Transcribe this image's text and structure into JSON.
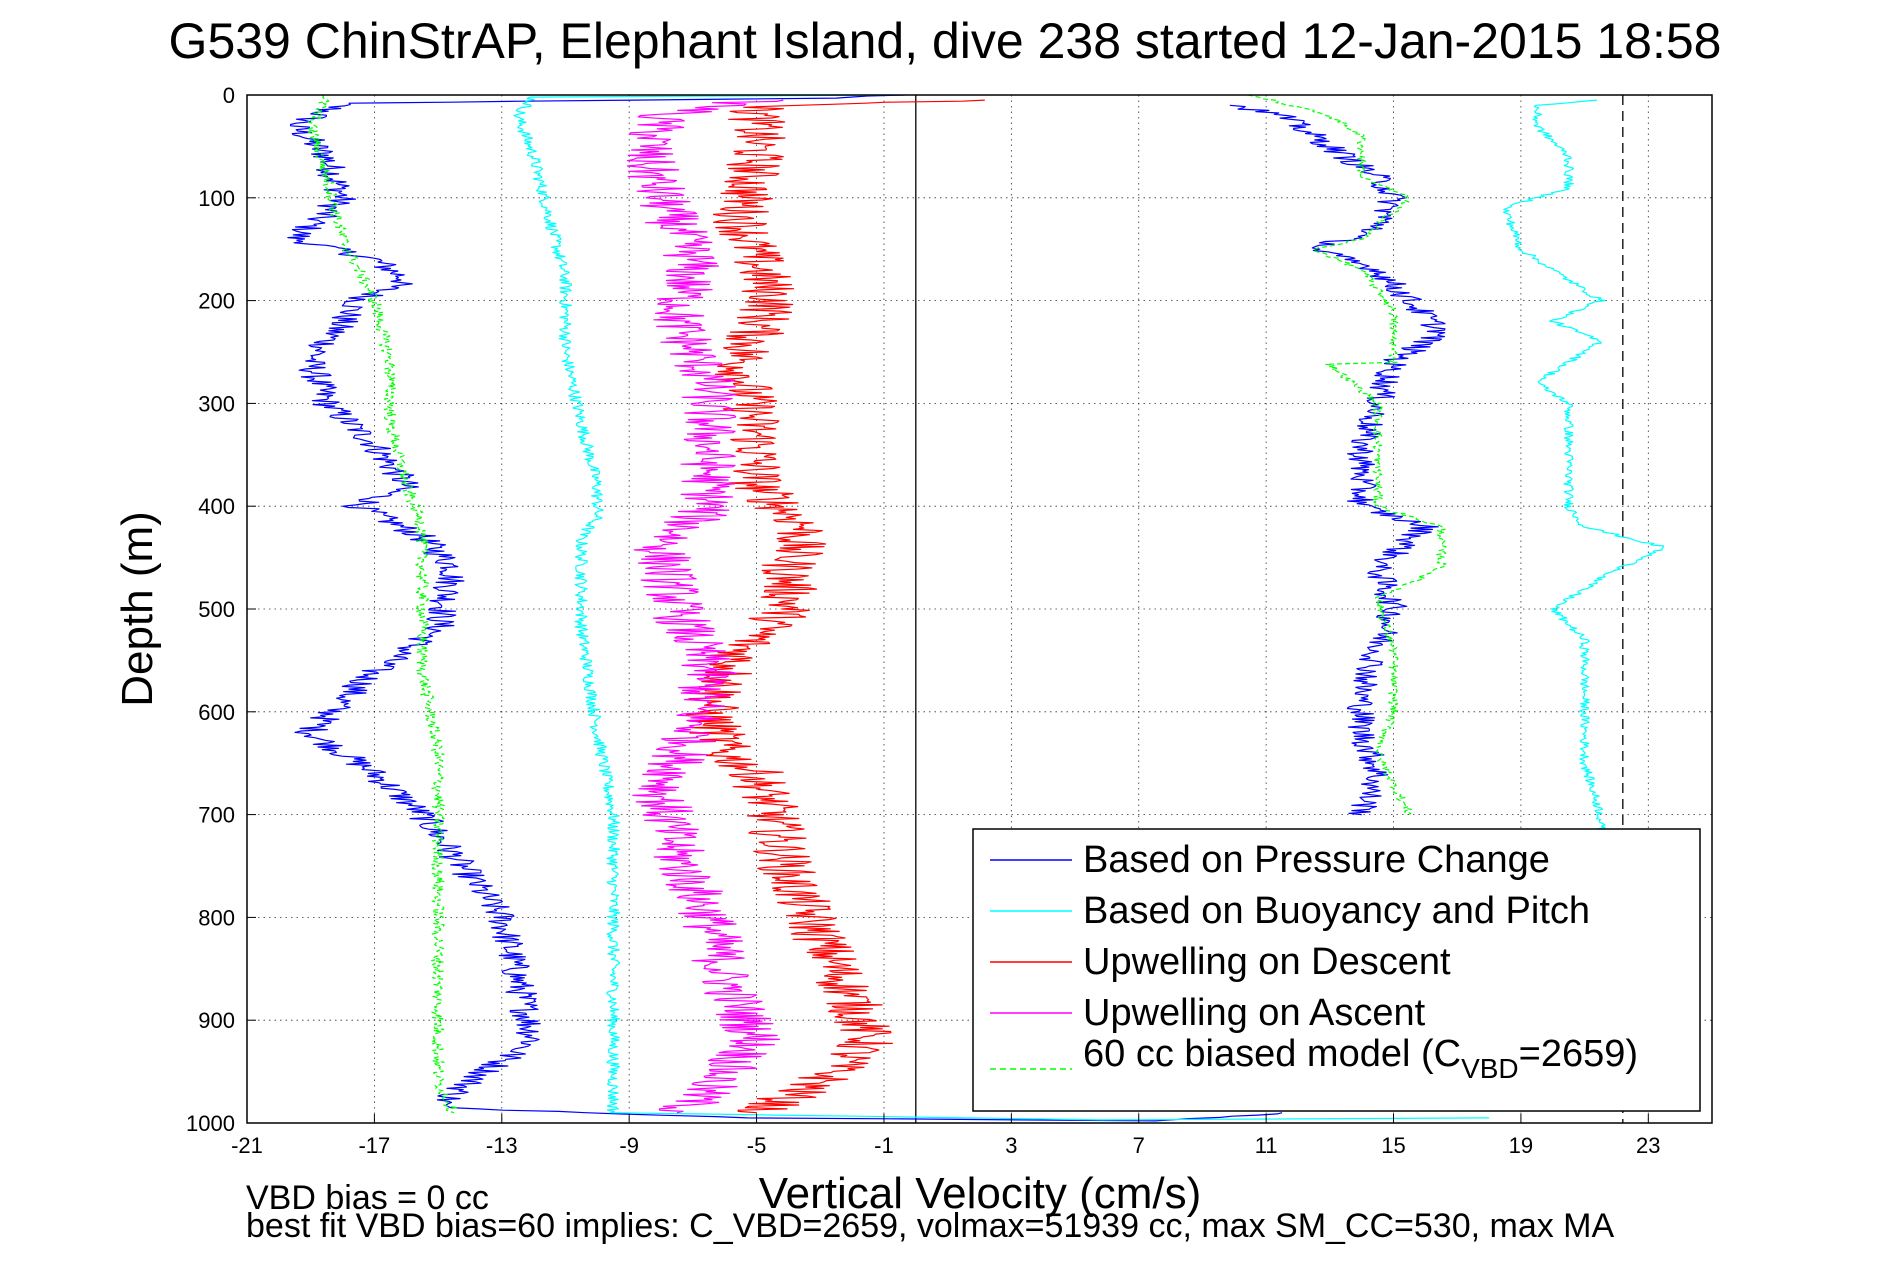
{
  "chart_data": {
    "type": "line",
    "title": "G539 ChinStrAP, Elephant Island, dive 238 started 12-Jan-2015 18:58",
    "xlabel": "Vertical Velocity (cm/s)",
    "ylabel": "Depth (m)",
    "xlim": [
      -21,
      25
    ],
    "ylim": [
      1000,
      0
    ],
    "y_reversed": true,
    "grid": true,
    "x_ticks": [
      -21,
      -17,
      -13,
      -9,
      -5,
      -1,
      3,
      7,
      11,
      15,
      19,
      23
    ],
    "y_ticks": [
      0,
      100,
      200,
      300,
      400,
      500,
      600,
      700,
      800,
      900,
      1000
    ],
    "reference_lines": [
      {
        "x": 0,
        "style": "solid",
        "color": "#000000"
      },
      {
        "x": 22.2,
        "style": "dashed",
        "color": "#000000"
      }
    ],
    "legend_position": "bottom-right",
    "legend": {
      "entries": [
        {
          "label": "Based on Pressure Change",
          "color": "#0000ff",
          "dash": "solid"
        },
        {
          "label": "Based on Buoyancy and Pitch",
          "color": "#00ffff",
          "dash": "solid"
        },
        {
          "label": "Upwelling on Descent",
          "color": "#ff0000",
          "dash": "solid"
        },
        {
          "label": "Upwelling on Ascent",
          "color": "#ff00ff",
          "dash": "solid"
        },
        {
          "label_main": "60 cc biased model (C",
          "label_sub": "VBD",
          "label_tail": "=2659)",
          "color": "#00ff00",
          "dash": "dashed"
        }
      ]
    },
    "series": [
      {
        "name": "Based on Pressure Change",
        "color": "#0000ff",
        "dash": "solid",
        "amp": 0.5,
        "points": [
          [
            -0.5,
            0
          ],
          [
            -3,
            3
          ],
          [
            -9,
            5
          ],
          [
            -18,
            8
          ],
          [
            -19.5,
            30
          ],
          [
            -18.5,
            60
          ],
          [
            -18,
            100
          ],
          [
            -19.5,
            140
          ],
          [
            -17,
            160
          ],
          [
            -16,
            180
          ],
          [
            -17.5,
            200
          ],
          [
            -19,
            260
          ],
          [
            -18.5,
            300
          ],
          [
            -17,
            340
          ],
          [
            -16,
            380
          ],
          [
            -17.5,
            400
          ],
          [
            -15.5,
            430
          ],
          [
            -14.5,
            460
          ],
          [
            -15,
            520
          ],
          [
            -17,
            560
          ],
          [
            -19,
            620
          ],
          [
            -17,
            660
          ],
          [
            -15.5,
            700
          ],
          [
            -14.5,
            740
          ],
          [
            -13,
            800
          ],
          [
            -12.5,
            860
          ],
          [
            -12,
            920
          ],
          [
            -14,
            960
          ],
          [
            -15,
            985
          ],
          [
            -5,
            995
          ],
          [
            8,
            998
          ],
          [
            11.5,
            990
          ]
        ]
      },
      {
        "name": "Based on Buoyancy and Pitch",
        "color": "#00ffff",
        "dash": "solid",
        "amp": 0.2,
        "points": [
          [
            -0.5,
            0
          ],
          [
            -12,
            2
          ],
          [
            -12.5,
            20
          ],
          [
            -12,
            60
          ],
          [
            -11.5,
            120
          ],
          [
            -11,
            180
          ],
          [
            -11,
            250
          ],
          [
            -10.5,
            320
          ],
          [
            -10,
            380
          ],
          [
            -10,
            410
          ],
          [
            -10.5,
            430
          ],
          [
            -10.5,
            520
          ],
          [
            -10,
            620
          ],
          [
            -9.5,
            700
          ],
          [
            -9.5,
            780
          ],
          [
            -9.5,
            860
          ],
          [
            -9.5,
            940
          ],
          [
            -9.5,
            990
          ],
          [
            6,
            997
          ],
          [
            18,
            995
          ]
        ]
      },
      {
        "name": "Upwelling on Descent",
        "color": "#ff0000",
        "dash": "solid",
        "amp": 0.9,
        "points": [
          [
            1.5,
            5
          ],
          [
            -1,
            8
          ],
          [
            -5,
            12
          ],
          [
            -5,
            60
          ],
          [
            -5.5,
            120
          ],
          [
            -4.5,
            200
          ],
          [
            -5.5,
            260
          ],
          [
            -5,
            330
          ],
          [
            -5,
            380
          ],
          [
            -3.5,
            420
          ],
          [
            -4,
            460
          ],
          [
            -4,
            500
          ],
          [
            -5.5,
            540
          ],
          [
            -6.5,
            600
          ],
          [
            -6,
            640
          ],
          [
            -5,
            660
          ],
          [
            -4.5,
            700
          ],
          [
            -4,
            760
          ],
          [
            -3,
            820
          ],
          [
            -2,
            880
          ],
          [
            -1.5,
            920
          ],
          [
            -3,
            960
          ],
          [
            -5,
            990
          ]
        ]
      },
      {
        "name": "Upwelling on Ascent",
        "color": "#ff00ff",
        "dash": "solid",
        "amp": 0.9,
        "points": [
          [
            -5,
            5
          ],
          [
            -8,
            20
          ],
          [
            -8.5,
            60
          ],
          [
            -8,
            100
          ],
          [
            -7,
            160
          ],
          [
            -7.5,
            220
          ],
          [
            -6.5,
            280
          ],
          [
            -6.5,
            340
          ],
          [
            -6.5,
            400
          ],
          [
            -8,
            440
          ],
          [
            -7.5,
            500
          ],
          [
            -6.5,
            560
          ],
          [
            -7,
            620
          ],
          [
            -8,
            680
          ],
          [
            -7.5,
            740
          ],
          [
            -6.5,
            800
          ],
          [
            -6,
            860
          ],
          [
            -5,
            920
          ],
          [
            -7,
            980
          ],
          [
            -7.5,
            990
          ]
        ]
      },
      {
        "name": "60 cc biased model (C_VBD=2659)",
        "color": "#00ff00",
        "dash": "dashed",
        "amp": 0.2,
        "points": [
          [
            -18.5,
            0
          ],
          [
            -19,
            30
          ],
          [
            -18.5,
            80
          ],
          [
            -18,
            140
          ],
          [
            -17,
            200
          ],
          [
            -16.5,
            260
          ],
          [
            -16.5,
            320
          ],
          [
            -16,
            380
          ],
          [
            -15.5,
            420
          ],
          [
            -15.5,
            480
          ],
          [
            -15.5,
            560
          ],
          [
            -15,
            640
          ],
          [
            -15,
            700
          ],
          [
            -15,
            760
          ],
          [
            -15,
            820
          ],
          [
            -15,
            900
          ],
          [
            -15,
            960
          ],
          [
            -14.5,
            990
          ]
        ]
      },
      {
        "name": "Based on Pressure Change (ascent)",
        "color": "#0000ff",
        "dash": "solid",
        "amp": 0.45,
        "points": [
          [
            10,
            10
          ],
          [
            11.5,
            20
          ],
          [
            12.5,
            40
          ],
          [
            13.5,
            60
          ],
          [
            14.5,
            80
          ],
          [
            15,
            100
          ],
          [
            14.5,
            130
          ],
          [
            12.5,
            150
          ],
          [
            14.5,
            170
          ],
          [
            15.5,
            200
          ],
          [
            16.5,
            230
          ],
          [
            15,
            260
          ],
          [
            14.5,
            300
          ],
          [
            14,
            340
          ],
          [
            14,
            380
          ],
          [
            14,
            400
          ],
          [
            16,
            420
          ],
          [
            14.5,
            460
          ],
          [
            15,
            500
          ],
          [
            14.5,
            540
          ],
          [
            14,
            580
          ],
          [
            14,
            620
          ],
          [
            14.5,
            660
          ],
          [
            14,
            700
          ]
        ]
      },
      {
        "name": "60 cc biased model (ascent)",
        "color": "#00ff00",
        "dash": "dashed",
        "amp": 0.15,
        "points": [
          [
            10.5,
            0
          ],
          [
            13,
            20
          ],
          [
            14,
            40
          ],
          [
            14,
            80
          ],
          [
            15.5,
            100
          ],
          [
            14,
            140
          ],
          [
            12.5,
            150
          ],
          [
            14,
            170
          ],
          [
            15,
            210
          ],
          [
            15,
            260
          ],
          [
            13,
            262
          ],
          [
            14.5,
            300
          ],
          [
            14.5,
            360
          ],
          [
            14.5,
            400
          ],
          [
            16.5,
            420
          ],
          [
            16.5,
            460
          ],
          [
            14.5,
            490
          ],
          [
            15,
            540
          ],
          [
            15,
            600
          ],
          [
            14.5,
            640
          ],
          [
            15.5,
            700
          ]
        ]
      },
      {
        "name": "Based on Buoyancy and Pitch (ascent)",
        "color": "#00ffff",
        "dash": "solid",
        "amp": 0.15,
        "points": [
          [
            21.5,
            5
          ],
          [
            19.5,
            10
          ],
          [
            19.5,
            30
          ],
          [
            20.5,
            60
          ],
          [
            20.5,
            90
          ],
          [
            18.5,
            110
          ],
          [
            19,
            150
          ],
          [
            20.5,
            180
          ],
          [
            21.5,
            200
          ],
          [
            20,
            220
          ],
          [
            21.5,
            240
          ],
          [
            20.5,
            260
          ],
          [
            19.5,
            280
          ],
          [
            20.5,
            300
          ],
          [
            20.5,
            340
          ],
          [
            20.5,
            400
          ],
          [
            21,
            420
          ],
          [
            23.5,
            440
          ],
          [
            21.5,
            470
          ],
          [
            20,
            500
          ],
          [
            21,
            530
          ],
          [
            21,
            600
          ],
          [
            21,
            650
          ],
          [
            21.5,
            700
          ],
          [
            21.5,
            715
          ]
        ]
      }
    ]
  },
  "notes": {
    "line1": "VBD bias = 0 cc",
    "line2": "best fit VBD bias=60 implies: C_VBD=2659, volmax=51939 cc, max SM_CC=530, max MA"
  }
}
